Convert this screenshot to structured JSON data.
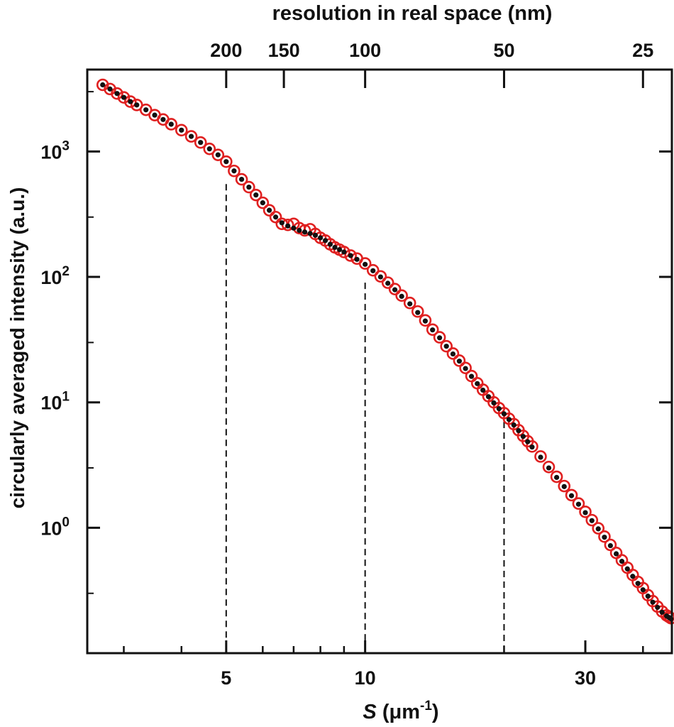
{
  "chart_data": {
    "type": "scatter",
    "title": "",
    "xlabel_main": "S",
    "xlabel_unit": "(μm",
    "xlabel_sup": "-1",
    "xlabel_close": ")",
    "ylabel": "circularly averaged intensity (a.u.)",
    "top_xlabel": "resolution in real space (nm)",
    "xscale": "log",
    "yscale": "log",
    "xlim": [
      2.5,
      46.2
    ],
    "ylim": [
      0.1,
      4500
    ],
    "grid": false,
    "x_ticks": [
      {
        "value": 5,
        "label": "5"
      },
      {
        "value": 10,
        "label": "10"
      },
      {
        "value": 30,
        "label": "30"
      }
    ],
    "x_minor_ticks": [
      3,
      4,
      6,
      7,
      8,
      9,
      20,
      40
    ],
    "top_ticks": [
      {
        "value": 5,
        "label": "200"
      },
      {
        "value": 6.667,
        "label": "150"
      },
      {
        "value": 10,
        "label": "100"
      },
      {
        "value": 20,
        "label": "50"
      },
      {
        "value": 40,
        "label": "25"
      }
    ],
    "y_ticks": [
      {
        "value": 1000,
        "base": "10",
        "exp": "3"
      },
      {
        "value": 100,
        "base": "10",
        "exp": "2"
      },
      {
        "value": 10,
        "base": "10",
        "exp": "1"
      },
      {
        "value": 1,
        "base": "10",
        "exp": "0"
      }
    ],
    "reference_lines": [
      {
        "x": 5,
        "y_top": 550
      },
      {
        "x": 10,
        "y_top": 90
      },
      {
        "x": 20,
        "y_top": 7
      }
    ],
    "series": [
      {
        "marker": "open-circle",
        "color": "#e02020",
        "x": [
          2.7,
          2.8,
          2.9,
          3.0,
          3.1,
          3.2,
          3.35,
          3.5,
          3.65,
          3.8,
          4.0,
          4.2,
          4.4,
          4.6,
          4.8,
          5.0,
          5.2,
          5.4,
          5.6,
          5.8,
          6.0,
          6.2,
          6.4,
          6.6,
          6.8,
          7.0,
          7.2,
          7.4,
          7.6,
          7.8,
          8.0,
          8.2,
          8.4,
          8.6,
          8.8,
          9.0,
          9.3,
          9.6,
          10.0,
          10.4,
          10.8,
          11.2,
          11.6,
          12.0,
          12.5,
          13.0,
          13.5,
          14.0,
          14.5,
          15.0,
          15.5,
          16.0,
          16.5,
          17.0,
          17.5,
          18.0,
          18.5,
          19.0,
          19.5,
          20.0,
          20.5,
          21.0,
          21.5,
          22.0,
          22.5,
          23.0,
          24.0,
          25.0,
          26.0,
          27.0,
          28.0,
          29.0,
          30.0,
          31.0,
          32.0,
          33.0,
          34.0,
          35.0,
          36.0,
          37.0,
          38.0,
          39.0,
          40.0,
          41.0,
          42.0,
          43.0,
          44.0,
          45.0,
          45.5,
          46.0
        ],
        "y": [
          3400,
          3150,
          2900,
          2700,
          2500,
          2350,
          2150,
          1950,
          1800,
          1650,
          1480,
          1320,
          1180,
          1050,
          940,
          830,
          700,
          600,
          520,
          450,
          390,
          340,
          300,
          265,
          260,
          265,
          245,
          235,
          240,
          220,
          205,
          195,
          182,
          172,
          165,
          158,
          148,
          140,
          128,
          113,
          101,
          90,
          80,
          71,
          62,
          53,
          45,
          38,
          33,
          28,
          24.5,
          21.5,
          18.8,
          16.2,
          14.2,
          12.6,
          11.2,
          10.0,
          9.0,
          8.2,
          7.4,
          6.7,
          6.0,
          5.4,
          4.9,
          4.45,
          3.7,
          3.05,
          2.55,
          2.15,
          1.82,
          1.56,
          1.34,
          1.15,
          0.99,
          0.85,
          0.73,
          0.63,
          0.55,
          0.48,
          0.42,
          0.37,
          0.33,
          0.29,
          0.26,
          0.235,
          0.215,
          0.2,
          0.195,
          0.19
        ]
      },
      {
        "marker": "filled-dot",
        "color": "#111111",
        "x": [
          2.7,
          2.8,
          2.9,
          3.0,
          3.1,
          3.2,
          3.35,
          3.5,
          3.65,
          3.8,
          4.0,
          4.2,
          4.4,
          4.6,
          4.8,
          5.0,
          5.2,
          5.4,
          5.6,
          5.8,
          6.0,
          6.2,
          6.4,
          6.6,
          6.8,
          7.0,
          7.2,
          7.4,
          7.6,
          7.8,
          8.0,
          8.2,
          8.4,
          8.6,
          8.8,
          9.0,
          9.3,
          9.6,
          10.0,
          10.4,
          10.8,
          11.2,
          11.6,
          12.0,
          12.5,
          13.0,
          13.5,
          14.0,
          14.5,
          15.0,
          15.5,
          16.0,
          16.5,
          17.0,
          17.5,
          18.0,
          18.5,
          19.0,
          19.5,
          20.0,
          20.5,
          21.0,
          21.5,
          22.0,
          22.5,
          23.0,
          24.0,
          25.0,
          26.0,
          27.0,
          28.0,
          29.0,
          30.0,
          31.0,
          32.0,
          33.0,
          34.0,
          35.0,
          36.0,
          37.0,
          38.0,
          39.0,
          40.0,
          41.0,
          42.0,
          43.0,
          44.0,
          45.0,
          45.5,
          46.0
        ],
        "y": [
          3400,
          3150,
          2900,
          2700,
          2500,
          2350,
          2150,
          1950,
          1800,
          1650,
          1480,
          1320,
          1180,
          1050,
          940,
          830,
          700,
          600,
          520,
          450,
          390,
          340,
          300,
          270,
          255,
          245,
          235,
          228,
          222,
          215,
          205,
          195,
          182,
          172,
          165,
          158,
          148,
          138,
          126,
          112,
          100,
          89,
          79,
          70,
          61,
          52,
          44.5,
          37.8,
          32.7,
          28,
          24.3,
          21.3,
          18.6,
          16.1,
          14.1,
          12.5,
          11.1,
          9.9,
          8.9,
          8.1,
          7.3,
          6.6,
          5.95,
          5.35,
          4.85,
          4.4,
          3.65,
          3.0,
          2.52,
          2.13,
          1.8,
          1.54,
          1.32,
          1.14,
          0.98,
          0.84,
          0.72,
          0.62,
          0.54,
          0.47,
          0.41,
          0.36,
          0.32,
          0.285,
          0.255,
          0.232,
          0.212,
          0.198,
          0.193,
          0.188
        ]
      }
    ]
  }
}
